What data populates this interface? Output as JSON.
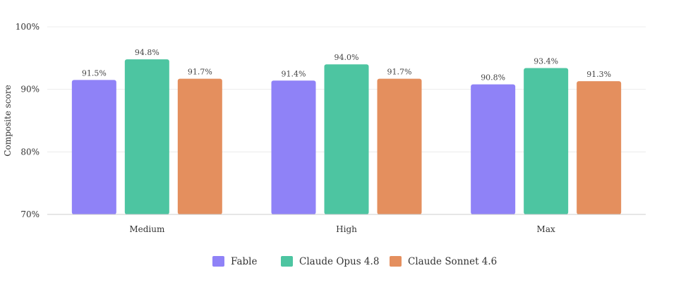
{
  "chart_data": {
    "type": "bar",
    "ylabel": "Composite score",
    "ylim": [
      70,
      100
    ],
    "yticks": [
      70,
      80,
      90,
      100
    ],
    "ytick_labels": [
      "70%",
      "80%",
      "90%",
      "100%"
    ],
    "grid": true,
    "legend_position": "bottom",
    "categories": [
      "Medium",
      "High",
      "Max"
    ],
    "series": [
      {
        "name": "Fable",
        "color": "#8f82f7",
        "values": [
          91.5,
          91.4,
          90.8
        ],
        "labels": [
          "91.5%",
          "91.4%",
          "90.8%"
        ]
      },
      {
        "name": "Claude Opus 4.8",
        "color": "#4dc5a1",
        "values": [
          94.8,
          94.0,
          93.4
        ],
        "labels": [
          "94.8%",
          "94.0%",
          "93.4%"
        ]
      },
      {
        "name": "Claude Sonnet 4.6",
        "color": "#e48f5e",
        "values": [
          91.7,
          91.7,
          91.3
        ],
        "labels": [
          "91.7%",
          "91.7%",
          "91.3%"
        ]
      }
    ]
  }
}
